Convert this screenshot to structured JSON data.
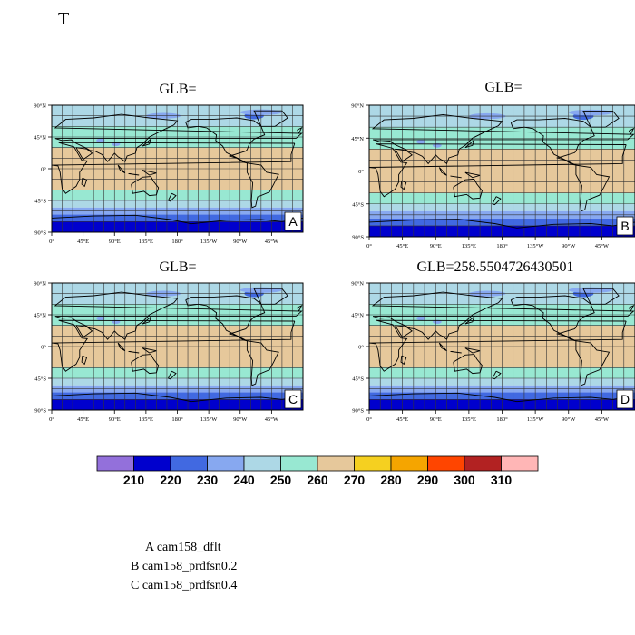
{
  "figure": {
    "title": "T"
  },
  "axes": {
    "lat_ticks": [
      "90°N",
      "45°N",
      "0°",
      "45°S",
      "90°S"
    ],
    "lon_ticks": [
      "0°",
      "45°E",
      "90°E",
      "135°E",
      "180°",
      "135°W",
      "90°W",
      "45°W"
    ]
  },
  "panels": [
    {
      "id": "A",
      "title": "GLB=",
      "corner_label": "A"
    },
    {
      "id": "B",
      "title": "GLB=",
      "corner_label": "B"
    },
    {
      "id": "C",
      "title": "GLB=",
      "corner_label": "C"
    },
    {
      "id": "D",
      "title": "GLB=258.5504726430501",
      "corner_label": "D"
    }
  ],
  "colorbar": {
    "labels": [
      "210",
      "220",
      "230",
      "240",
      "250",
      "260",
      "270",
      "280",
      "290",
      "300",
      "310"
    ],
    "colors": [
      "#9370db",
      "#0000cd",
      "#4169e1",
      "#87a8f0",
      "#add8e6",
      "#98e8d2",
      "#e6c89b",
      "#f5d020",
      "#f5a500",
      "#ff4500",
      "#b22222",
      "#ffb6b6"
    ]
  },
  "legend": {
    "entries": [
      {
        "key": "A",
        "name": "cam158_dflt"
      },
      {
        "key": "B",
        "name": "cam158_prdfsn0.2"
      },
      {
        "key": "C",
        "name": "cam158_prdfsn0.4"
      }
    ]
  },
  "chart_data": {
    "type": "heatmap",
    "variable": "T",
    "levels": [
      210,
      220,
      230,
      240,
      250,
      260,
      270,
      280,
      290,
      300,
      310
    ],
    "xlim": [
      0,
      360
    ],
    "ylim": [
      -90,
      90
    ],
    "zonal_bands": [
      {
        "lat_from": 90,
        "lat_to": 60,
        "level_color": "#add8e6"
      },
      {
        "lat_from": 60,
        "lat_to": 30,
        "level_color": "#98e8d2"
      },
      {
        "lat_from": 30,
        "lat_to": -30,
        "level_color": "#e6c89b"
      },
      {
        "lat_from": -30,
        "lat_to": -45,
        "level_color": "#98e8d2"
      },
      {
        "lat_from": -45,
        "lat_to": -55,
        "level_color": "#add8e6"
      },
      {
        "lat_from": -55,
        "lat_to": -65,
        "level_color": "#87a8f0"
      },
      {
        "lat_from": -65,
        "lat_to": -75,
        "level_color": "#4169e1"
      },
      {
        "lat_from": -75,
        "lat_to": -90,
        "level_color": "#0000cd"
      }
    ]
  }
}
